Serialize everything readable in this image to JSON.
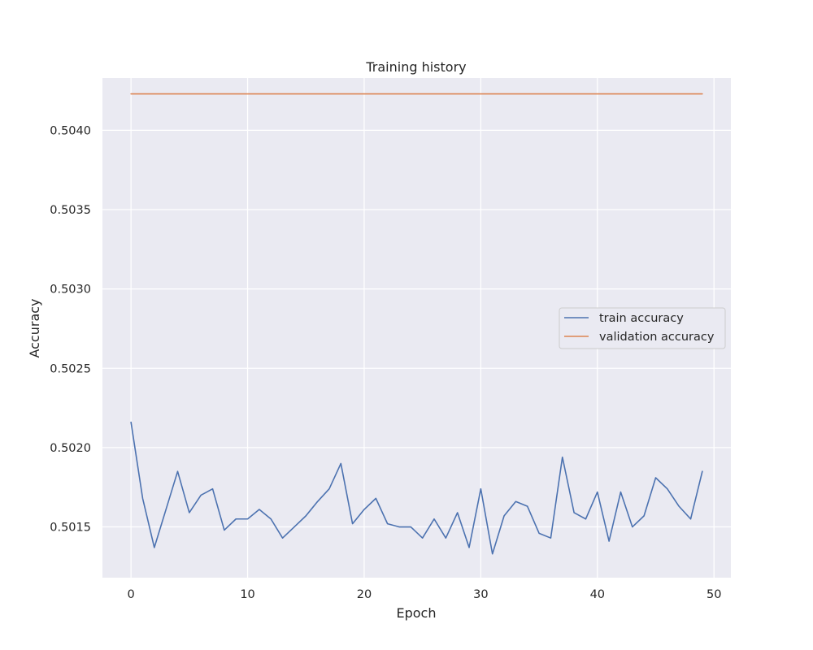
{
  "chart_data": {
    "type": "line",
    "title": "Training history",
    "xlabel": "Epoch",
    "ylabel": "Accuracy",
    "xlim": [
      -2.45,
      51.45
    ],
    "ylim": [
      0.50118,
      0.50433
    ],
    "x_ticks": [
      0,
      10,
      20,
      30,
      40,
      50
    ],
    "x_tick_labels": [
      "0",
      "10",
      "20",
      "30",
      "40",
      "50"
    ],
    "y_ticks": [
      0.5015,
      0.502,
      0.5025,
      0.503,
      0.5035,
      0.504
    ],
    "y_tick_labels": [
      "0.5015",
      "0.5020",
      "0.5025",
      "0.5030",
      "0.5035",
      "0.5040"
    ],
    "grid": true,
    "legend_position": "center-right",
    "background_color": "#eaeaf2",
    "x": [
      0,
      1,
      2,
      3,
      4,
      5,
      6,
      7,
      8,
      9,
      10,
      11,
      12,
      13,
      14,
      15,
      16,
      17,
      18,
      19,
      20,
      21,
      22,
      23,
      24,
      25,
      26,
      27,
      28,
      29,
      30,
      31,
      32,
      33,
      34,
      35,
      36,
      37,
      38,
      39,
      40,
      41,
      42,
      43,
      44,
      45,
      46,
      47,
      48,
      49
    ],
    "series": [
      {
        "name": "train accuracy",
        "color": "#4c72b0",
        "values": [
          0.50216,
          0.50168,
          0.50137,
          0.50161,
          0.50185,
          0.50159,
          0.5017,
          0.50174,
          0.50148,
          0.50155,
          0.50155,
          0.50161,
          0.50155,
          0.50143,
          0.5015,
          0.50157,
          0.50166,
          0.50174,
          0.5019,
          0.50152,
          0.50161,
          0.50168,
          0.50152,
          0.5015,
          0.5015,
          0.50143,
          0.50155,
          0.50143,
          0.50159,
          0.50137,
          0.50174,
          0.50133,
          0.50157,
          0.50166,
          0.50163,
          0.50146,
          0.50143,
          0.50194,
          0.50159,
          0.50155,
          0.50172,
          0.50141,
          0.50172,
          0.5015,
          0.50157,
          0.50181,
          0.50174,
          0.50163,
          0.50155,
          0.50185
        ]
      },
      {
        "name": "validation accuracy",
        "color": "#dd8452",
        "values": [
          0.50423,
          0.50423,
          0.50423,
          0.50423,
          0.50423,
          0.50423,
          0.50423,
          0.50423,
          0.50423,
          0.50423,
          0.50423,
          0.50423,
          0.50423,
          0.50423,
          0.50423,
          0.50423,
          0.50423,
          0.50423,
          0.50423,
          0.50423,
          0.50423,
          0.50423,
          0.50423,
          0.50423,
          0.50423,
          0.50423,
          0.50423,
          0.50423,
          0.50423,
          0.50423,
          0.50423,
          0.50423,
          0.50423,
          0.50423,
          0.50423,
          0.50423,
          0.50423,
          0.50423,
          0.50423,
          0.50423,
          0.50423,
          0.50423,
          0.50423,
          0.50423,
          0.50423,
          0.50423,
          0.50423,
          0.50423,
          0.50423,
          0.50423
        ]
      }
    ]
  }
}
